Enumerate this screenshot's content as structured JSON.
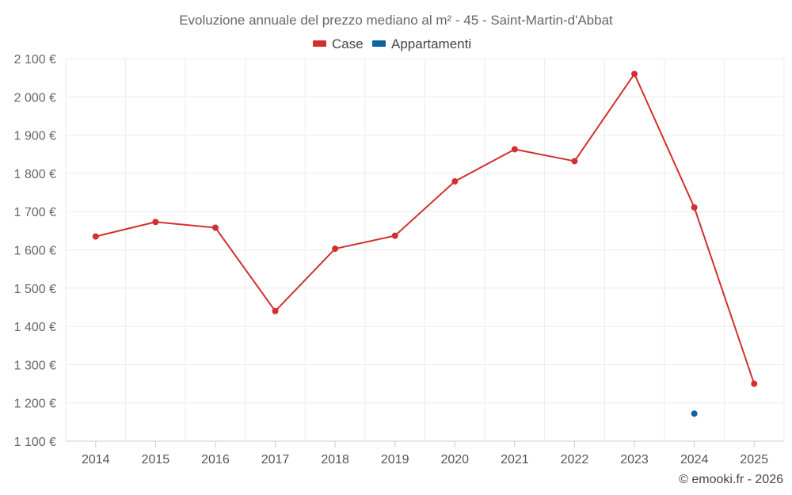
{
  "chart_data": {
    "type": "line",
    "title": "Evoluzione annuale del prezzo mediano al m² - 45 - Saint-Martin-d'Abbat",
    "categories": [
      "2014",
      "2015",
      "2016",
      "2017",
      "2018",
      "2019",
      "2020",
      "2021",
      "2022",
      "2023",
      "2024",
      "2025"
    ],
    "ylim": [
      1100,
      2100
    ],
    "yticks": [
      1100,
      1200,
      1300,
      1400,
      1500,
      1600,
      1700,
      1800,
      1900,
      2000,
      2100
    ],
    "ytick_labels": [
      "1 100 €",
      "1 200 €",
      "1 300 €",
      "1 400 €",
      "1 500 €",
      "1 600 €",
      "1 700 €",
      "1 800 €",
      "1 900 €",
      "2 000 €",
      "2 100 €"
    ],
    "series": [
      {
        "name": "Case",
        "color": "#d32f2f",
        "values": [
          1635,
          1673,
          1658,
          1440,
          1603,
          1637,
          1779,
          1863,
          1832,
          2060,
          1711,
          1250
        ]
      },
      {
        "name": "Appartamenti",
        "color": "#0d62a0",
        "values": [
          null,
          null,
          null,
          null,
          null,
          null,
          null,
          null,
          null,
          null,
          1172,
          null
        ]
      }
    ],
    "legend_position": "top-center",
    "grid": true
  },
  "credit": "© emooki.fr - 2026"
}
